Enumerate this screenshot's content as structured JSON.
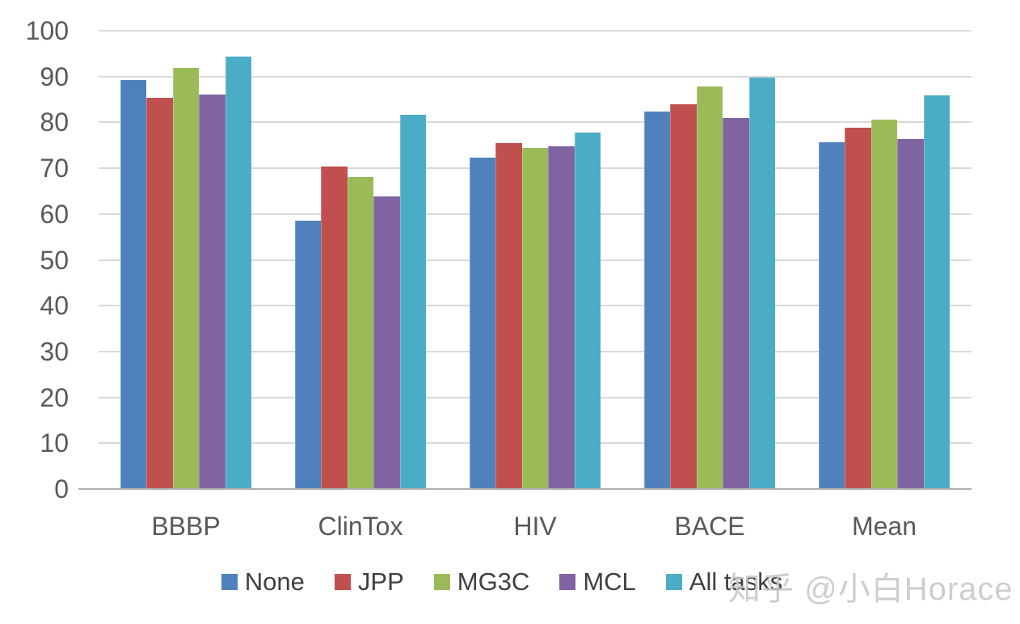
{
  "watermark": "知乎 @小白Horace",
  "axis": {
    "text_color": "#595959",
    "gridline_color": "#d9d9d9",
    "baseline_color": "#b0b0b0"
  },
  "chart_data": {
    "type": "bar",
    "title": "",
    "xlabel": "",
    "ylabel": "",
    "categories": [
      "BBBP",
      "ClinTox",
      "HIV",
      "BACE",
      "Mean"
    ],
    "series": [
      {
        "name": "None",
        "color": "#4F81BD",
        "values": [
          89.3,
          58.5,
          72.3,
          82.4,
          75.6
        ]
      },
      {
        "name": "JPP",
        "color": "#C0504D",
        "values": [
          85.3,
          70.4,
          75.5,
          83.9,
          78.8
        ]
      },
      {
        "name": "MG3C",
        "color": "#9BBB59",
        "values": [
          91.9,
          68.1,
          74.4,
          87.9,
          80.6
        ]
      },
      {
        "name": "MCL",
        "color": "#8064A2",
        "values": [
          86.0,
          63.9,
          74.7,
          81.0,
          76.4
        ]
      },
      {
        "name": "All tasks",
        "color": "#4BACC6",
        "values": [
          94.4,
          81.6,
          77.8,
          89.7,
          85.9
        ]
      }
    ],
    "ylim": [
      0,
      100
    ],
    "y_ticks": [
      0,
      10,
      20,
      30,
      40,
      50,
      60,
      70,
      80,
      90,
      100
    ],
    "grid": true,
    "legend_position": "bottom"
  }
}
